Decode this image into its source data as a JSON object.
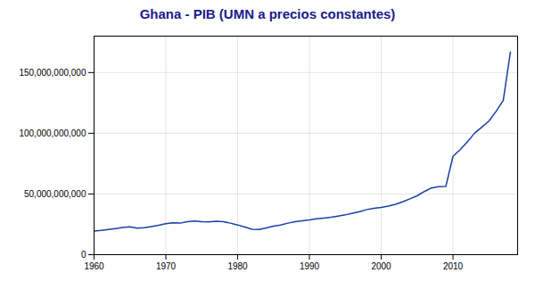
{
  "chart_data": {
    "type": "line",
    "title": "Ghana - PIB (UMN a precios constantes)",
    "x": [
      1960,
      1961,
      1962,
      1963,
      1964,
      1965,
      1966,
      1967,
      1968,
      1969,
      1970,
      1971,
      1972,
      1973,
      1974,
      1975,
      1976,
      1977,
      1978,
      1979,
      1980,
      1981,
      1982,
      1983,
      1984,
      1985,
      1986,
      1987,
      1988,
      1989,
      1990,
      1991,
      1992,
      1993,
      1994,
      1995,
      1996,
      1997,
      1998,
      1999,
      2000,
      2001,
      2002,
      2003,
      2004,
      2005,
      2006,
      2007,
      2008,
      2009,
      2010,
      2011,
      2012,
      2013,
      2014,
      2015,
      2016,
      2017,
      2018
    ],
    "values": [
      19500000000,
      20000000000,
      20700000000,
      21500000000,
      22400000000,
      23000000000,
      21800000000,
      22200000000,
      23200000000,
      24300000000,
      25600000000,
      26200000000,
      26000000000,
      27200000000,
      27800000000,
      27200000000,
      27000000000,
      27500000000,
      27200000000,
      26000000000,
      24500000000,
      22800000000,
      21000000000,
      20800000000,
      22000000000,
      23500000000,
      24500000000,
      26000000000,
      27200000000,
      28000000000,
      28700000000,
      29600000000,
      30200000000,
      30800000000,
      31800000000,
      32800000000,
      34200000000,
      35500000000,
      37200000000,
      38200000000,
      39000000000,
      40000000000,
      41500000000,
      43500000000,
      46000000000,
      48500000000,
      52000000000,
      55000000000,
      56000000000,
      56200000000,
      81000000000,
      86500000000,
      93000000000,
      100000000000,
      105000000000,
      110000000000,
      118000000000,
      127000000000,
      167000000000
    ],
    "color": "#1a3faa",
    "xlim": [
      1960,
      2019
    ],
    "xticks": [
      1960,
      1970,
      1980,
      1990,
      2000,
      2010
    ],
    "ylim": [
      0,
      180000000000
    ],
    "yticks": [
      0,
      {
        "value": 50000000000,
        "label": "50,000,000,000"
      },
      {
        "value": 100000000000,
        "label": "100,000,000,000"
      },
      {
        "value": 150000000000,
        "label": "150,000,000,000"
      }
    ],
    "grid": true
  }
}
